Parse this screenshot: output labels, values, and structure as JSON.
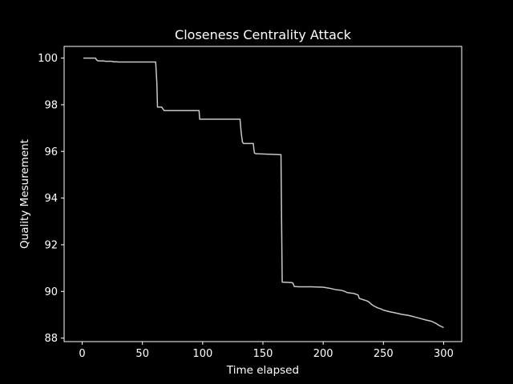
{
  "colors": {
    "background": "#000000",
    "axes": "#ffffff",
    "line": "#c8c8c8"
  },
  "chart_data": {
    "type": "line",
    "title": "Closeness Centrality Attack",
    "xlabel": "Time elapsed",
    "ylabel": "Quality Mesurement",
    "xlim": [
      -15,
      315
    ],
    "ylim": [
      87.85,
      100.5
    ],
    "xticks": [
      0,
      50,
      100,
      150,
      200,
      250,
      300
    ],
    "yticks": [
      88,
      90,
      92,
      94,
      96,
      98,
      100
    ],
    "grid": false,
    "legend": "none",
    "series": [
      {
        "x": [
          1,
          11,
          12,
          13,
          18,
          19,
          25,
          26,
          29,
          30,
          61,
          62,
          62.5,
          66,
          67,
          68,
          97,
          97.5,
          131,
          132,
          133,
          134,
          142,
          142.5,
          143,
          144,
          165,
          165.5,
          166,
          174,
          175,
          176,
          180,
          190,
          200,
          205,
          210,
          215,
          218,
          220,
          223,
          225,
          229,
          230,
          233,
          236,
          238,
          240,
          242,
          245,
          248,
          250,
          255,
          260,
          265,
          270,
          275,
          280,
          285,
          290,
          294,
          296,
          300
        ],
        "y": [
          100.0,
          100.0,
          99.92,
          99.88,
          99.88,
          99.86,
          99.86,
          99.84,
          99.84,
          99.83,
          99.83,
          98.9,
          97.9,
          97.9,
          97.82,
          97.75,
          97.75,
          97.38,
          97.38,
          96.8,
          96.4,
          96.34,
          96.34,
          96.1,
          95.93,
          95.9,
          95.86,
          93.0,
          90.4,
          90.38,
          90.35,
          90.21,
          90.2,
          90.2,
          90.18,
          90.14,
          90.08,
          90.05,
          90.0,
          89.95,
          89.93,
          89.92,
          89.85,
          89.7,
          89.65,
          89.6,
          89.55,
          89.45,
          89.38,
          89.3,
          89.25,
          89.2,
          89.13,
          89.08,
          89.02,
          88.98,
          88.92,
          88.85,
          88.78,
          88.72,
          88.62,
          88.55,
          88.45
        ]
      }
    ]
  }
}
